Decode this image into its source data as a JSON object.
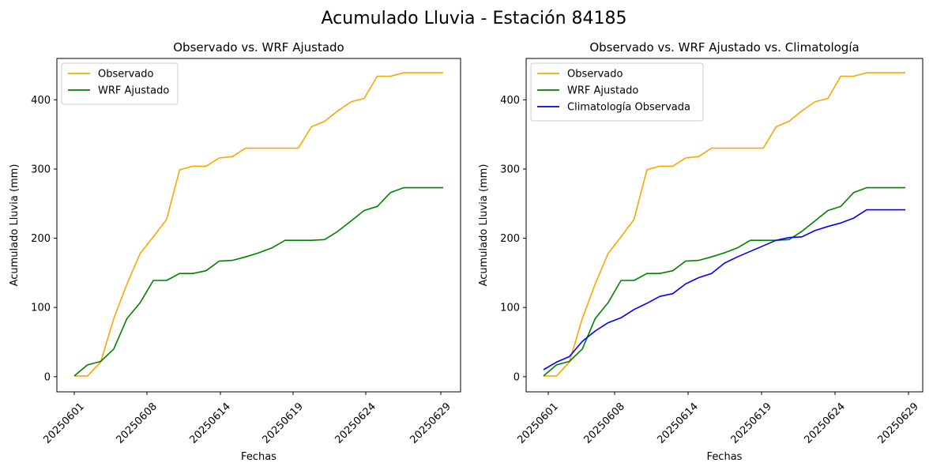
{
  "figure": {
    "suptitle": "Acumulado Lluvia - Estación 84185"
  },
  "chart_data": [
    {
      "type": "line",
      "title": "Observado vs. WRF Ajustado",
      "xlabel": "Fechas",
      "ylabel": "Acumulado Lluvia (mm)",
      "ylim": [
        -21.9,
        459.7
      ],
      "grid": false,
      "legend_position": "top-left",
      "xtick_labels": [
        "20250601",
        "20250608",
        "20250614",
        "20250619",
        "20250624",
        "20250629"
      ],
      "ytick_values": [
        0,
        100,
        200,
        300,
        400
      ],
      "x": [
        1,
        2,
        3,
        4,
        5,
        6,
        7,
        8,
        9,
        10,
        11,
        12,
        13,
        14,
        15,
        16,
        17,
        18,
        19,
        20,
        21,
        22,
        23,
        24,
        25,
        26,
        27,
        28,
        29
      ],
      "series": [
        {
          "name": "Observado",
          "color": "#ffa500",
          "values": [
            1,
            1,
            21,
            84,
            134,
            178,
            202,
            227,
            299,
            304,
            304,
            316,
            318,
            330,
            330,
            330,
            330,
            330,
            361,
            369,
            384,
            397,
            402,
            434,
            434,
            439,
            439,
            439,
            439
          ]
        },
        {
          "name": "WRF Ajustado",
          "color": "#008000",
          "values": [
            1,
            17,
            22,
            40,
            84,
            107,
            139,
            139,
            149,
            149,
            153,
            167,
            168,
            173,
            179,
            186,
            197,
            197,
            197,
            198,
            210,
            225,
            240,
            246,
            266,
            273,
            273,
            273,
            273
          ]
        }
      ]
    },
    {
      "type": "line",
      "title": "Observado vs. WRF Ajustado vs. Climatología",
      "xlabel": "Fechas",
      "ylabel": "Acumulado Lluvia (mm)",
      "ylim": [
        -21.9,
        459.7
      ],
      "grid": false,
      "legend_position": "top-left",
      "xtick_labels": [
        "20250601",
        "20250608",
        "20250614",
        "20250619",
        "20250624",
        "20250629"
      ],
      "ytick_values": [
        0,
        100,
        200,
        300,
        400
      ],
      "x": [
        1,
        2,
        3,
        4,
        5,
        6,
        7,
        8,
        9,
        10,
        11,
        12,
        13,
        14,
        15,
        16,
        17,
        18,
        19,
        20,
        21,
        22,
        23,
        24,
        25,
        26,
        27,
        28,
        29
      ],
      "series": [
        {
          "name": "Observado",
          "color": "#ffa500",
          "values": [
            1,
            1,
            21,
            84,
            134,
            178,
            202,
            227,
            299,
            304,
            304,
            316,
            318,
            330,
            330,
            330,
            330,
            330,
            361,
            369,
            384,
            397,
            402,
            434,
            434,
            439,
            439,
            439,
            439
          ]
        },
        {
          "name": "WRF Ajustado",
          "color": "#008000",
          "values": [
            1,
            17,
            22,
            40,
            84,
            107,
            139,
            139,
            149,
            149,
            153,
            167,
            168,
            173,
            179,
            186,
            197,
            197,
            197,
            198,
            210,
            225,
            240,
            246,
            266,
            273,
            273,
            273,
            273
          ]
        },
        {
          "name": "Climatología Observada",
          "color": "#0000ff",
          "values": [
            10,
            21,
            29,
            51,
            66,
            78,
            85,
            97,
            106,
            116,
            120,
            134,
            143,
            149,
            164,
            173,
            181,
            189,
            197,
            201,
            202,
            211,
            217,
            222,
            229,
            241,
            241,
            241,
            241
          ]
        }
      ]
    }
  ]
}
